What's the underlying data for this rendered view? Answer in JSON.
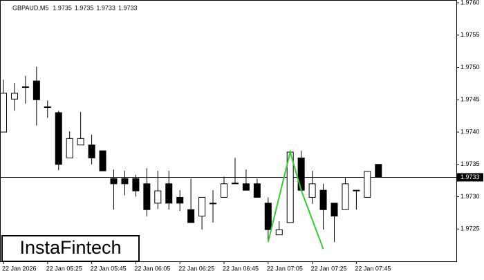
{
  "chart_data": {
    "type": "candlestick",
    "title": "GBPAUD,M5",
    "header_values": [
      1.9735,
      1.9735,
      1.9733,
      1.9733
    ],
    "categories": [
      "22 Jan 2026",
      null,
      null,
      null,
      "22 Jan 05:25",
      null,
      null,
      null,
      "22 Jan 05:45",
      null,
      null,
      null,
      "22 Jan 06:05",
      null,
      null,
      null,
      "22 Jan 06:25",
      null,
      null,
      null,
      "22 Jan 06:45",
      null,
      null,
      null,
      "22 Jan 07:05",
      null,
      null,
      null,
      "22 Jan 07:25",
      null,
      null,
      null,
      "22 Jan 07:45",
      null,
      null
    ],
    "open": [
      1.974,
      1.97451,
      1.9747,
      1.97479,
      1.97439,
      1.9743,
      1.9736,
      1.9738,
      1.9738,
      1.97371,
      1.97328,
      1.97328,
      1.97328,
      1.9732,
      1.9729,
      1.9732,
      1.97299,
      1.9728,
      1.9727,
      1.9729,
      1.97299,
      1.9732,
      1.9732,
      1.9732,
      1.9729,
      1.97241,
      1.9726,
      1.9736,
      1.97299,
      1.9731,
      1.9729,
      1.9728,
      1.9731,
      1.97299,
      1.9735
    ],
    "high": [
      1.97481,
      1.97476,
      1.97487,
      1.97501,
      1.97449,
      1.97433,
      1.97401,
      1.97431,
      1.97396,
      1.97371,
      1.97342,
      1.9734,
      1.97334,
      1.97344,
      1.9734,
      1.9734,
      1.9731,
      1.97328,
      1.97299,
      1.9731,
      1.97331,
      1.9736,
      1.97342,
      1.97328,
      1.97299,
      1.97262,
      1.97371,
      1.97371,
      1.9734,
      1.9732,
      1.9729,
      1.97329,
      1.9731,
      1.97339,
      1.9735
    ],
    "low": [
      1.97401,
      1.97433,
      1.97444,
      1.9741,
      1.97422,
      1.97341,
      1.9736,
      1.9738,
      1.9735,
      1.9734,
      1.9728,
      1.97302,
      1.973,
      1.9727,
      1.97281,
      1.9728,
      1.97278,
      1.9726,
      1.97249,
      1.9726,
      1.97299,
      1.9732,
      1.9731,
      1.97299,
      1.9723,
      1.97241,
      1.9726,
      1.97309,
      1.97289,
      1.97249,
      1.9723,
      1.9728,
      1.9728,
      1.97299,
      1.9733
    ],
    "close": [
      1.9746,
      1.9746,
      1.9747,
      1.9745,
      1.97438,
      1.9735,
      1.9739,
      1.9739,
      1.9736,
      1.9734,
      1.9732,
      1.9732,
      1.97309,
      1.9728,
      1.97309,
      1.9729,
      1.9729,
      1.9726,
      1.97299,
      1.9729,
      1.9732,
      1.97321,
      1.9731,
      1.97299,
      1.97249,
      1.97249,
      1.97369,
      1.9731,
      1.9732,
      1.9728,
      1.9727,
      1.9732,
      1.9731,
      1.97339,
      1.9733
    ],
    "bull_color": "#ffffff",
    "bear_color": "#000000",
    "pattern": {
      "indices": [
        24,
        26,
        27,
        29
      ],
      "values": [
        1.9723,
        1.97369,
        1.9731,
        1.97219
      ],
      "color": "#33cc33"
    },
    "current_price": 1.9733,
    "ylim": [
      1.972,
      1.976
    ],
    "yticks": [
      {
        "value": 1.976,
        "label": "1.9760"
      },
      1.9755,
      {
        "value": 1.975,
        "label": "1.9750"
      },
      1.9745,
      {
        "value": 1.974,
        "label": "1.9740"
      },
      1.9735,
      {
        "value": 1.973,
        "label": "1.9730"
      },
      1.9725
    ],
    "logo": "InstaFintech"
  }
}
